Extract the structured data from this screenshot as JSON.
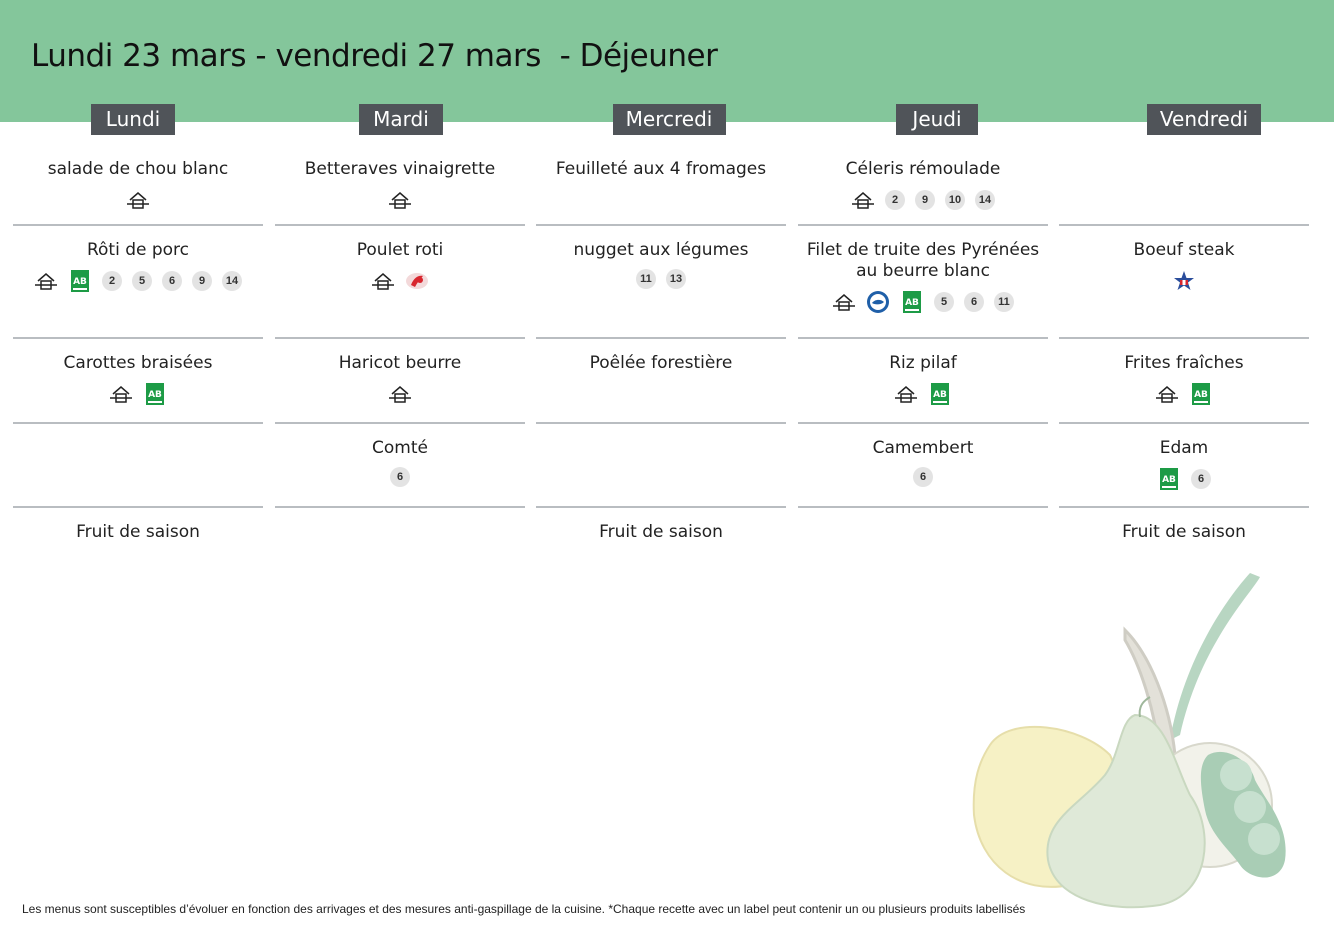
{
  "header": {
    "title": "Lundi 23 mars - vendredi 27 mars  - Déjeuner",
    "background": "#84c69b"
  },
  "days": [
    {
      "label": "Lundi",
      "courses": [
        {
          "dish": "salade de chou blanc",
          "badges": [
            "fait-maison"
          ]
        },
        {
          "dish": "Rôti de porc",
          "badges": [
            "fait-maison",
            "ab",
            "2",
            "5",
            "6",
            "9",
            "14"
          ]
        },
        {
          "dish": "Carottes braisées",
          "badges": [
            "fait-maison",
            "ab"
          ]
        },
        {
          "dish": "",
          "badges": []
        },
        {
          "dish": "Fruit de saison",
          "badges": []
        }
      ]
    },
    {
      "label": "Mardi",
      "courses": [
        {
          "dish": "Betteraves vinaigrette",
          "badges": [
            "fait-maison"
          ]
        },
        {
          "dish": "Poulet roti",
          "badges": [
            "fait-maison",
            "label-rouge"
          ]
        },
        {
          "dish": "Haricot beurre",
          "badges": [
            "fait-maison"
          ]
        },
        {
          "dish": "Comté",
          "badges": [
            "6"
          ]
        },
        {
          "dish": "",
          "badges": []
        }
      ]
    },
    {
      "label": "Mercredi",
      "courses": [
        {
          "dish": "Feuilleté aux 4 fromages",
          "badges": []
        },
        {
          "dish": "nugget aux légumes",
          "badges": [
            "11",
            "13"
          ]
        },
        {
          "dish": "Poêlée forestière",
          "badges": []
        },
        {
          "dish": "",
          "badges": []
        },
        {
          "dish": "Fruit de saison",
          "badges": []
        }
      ]
    },
    {
      "label": "Jeudi",
      "courses": [
        {
          "dish": "Céleris rémoulade",
          "badges": [
            "fait-maison",
            "2",
            "9",
            "10",
            "14"
          ]
        },
        {
          "dish": "Filet de truite des Pyrénées au beurre blanc",
          "badges": [
            "fait-maison",
            "msc",
            "ab",
            "5",
            "6",
            "11"
          ]
        },
        {
          "dish": "Riz pilaf",
          "badges": [
            "fait-maison",
            "ab"
          ]
        },
        {
          "dish": "Camembert",
          "badges": [
            "6"
          ]
        },
        {
          "dish": "",
          "badges": []
        }
      ]
    },
    {
      "label": "Vendredi",
      "courses": [
        {
          "dish": "",
          "badges": []
        },
        {
          "dish": "Boeuf steak",
          "badges": [
            "viande-bovine-francaise"
          ]
        },
        {
          "dish": "Frites fraîches",
          "badges": [
            "fait-maison",
            "ab"
          ]
        },
        {
          "dish": "Edam",
          "badges": [
            "ab",
            "6"
          ]
        },
        {
          "dish": "Fruit de saison",
          "badges": []
        }
      ]
    }
  ],
  "footer": {
    "note": "Les menus sont susceptibles d’évoluer en fonction des arrivages et des mesures anti-gaspillage de la cuisine. *Chaque recette avec un label peut contenir un ou plusieurs produits labellisés"
  },
  "colors": {
    "day_label_bg": "#505459",
    "divider": "#b9bdc1",
    "number_badge_bg": "#e3e3e3",
    "ab_green": "#1d9b46",
    "label_rouge": "#d8262e",
    "msc_blue": "#1f5fa8"
  }
}
